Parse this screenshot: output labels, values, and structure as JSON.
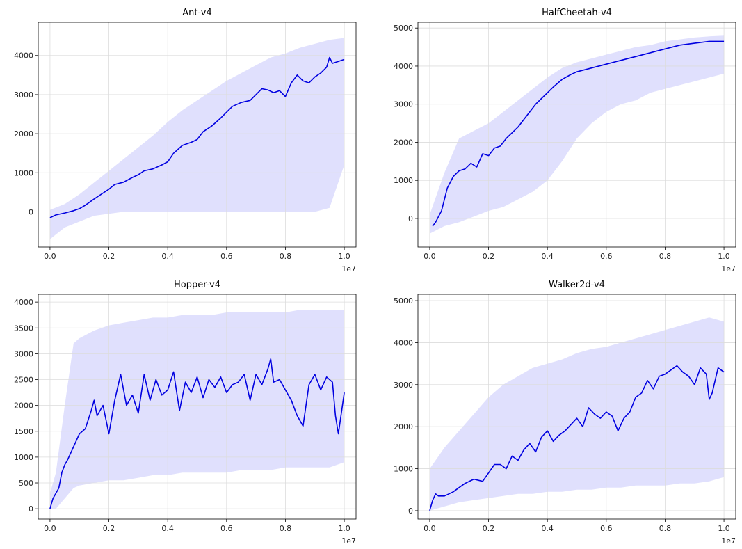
{
  "figure": {
    "background": "#ffffff"
  },
  "style": {
    "mean_color": "#0000e0",
    "band_color": "#e0e0fd",
    "grid_color": "#dcdcdc",
    "axis_color": "#000000"
  },
  "chart_data": [
    {
      "type": "line",
      "title": "Ant-v4",
      "xlabel": "",
      "ylabel": "",
      "x_offset_label": "1e7",
      "xlim": [
        -0.04,
        1.04
      ],
      "ylim": [
        -900,
        4850
      ],
      "xticks": [
        0.0,
        0.2,
        0.4,
        0.6,
        0.8,
        1.0
      ],
      "xtick_labels": [
        "0.0",
        "0.2",
        "0.4",
        "0.6",
        "0.8",
        "1.0"
      ],
      "yticks": [
        0,
        1000,
        2000,
        3000,
        4000
      ],
      "ytick_labels": [
        "0",
        "1000",
        "2000",
        "3000",
        "4000"
      ],
      "grid": true,
      "series": [
        {
          "mean": {
            "x": [
              0.0,
              0.02,
              0.05,
              0.08,
              0.1,
              0.12,
              0.15,
              0.18,
              0.2,
              0.22,
              0.25,
              0.28,
              0.3,
              0.32,
              0.35,
              0.38,
              0.4,
              0.42,
              0.45,
              0.48,
              0.5,
              0.52,
              0.55,
              0.58,
              0.6,
              0.62,
              0.65,
              0.68,
              0.7,
              0.72,
              0.74,
              0.76,
              0.78,
              0.8,
              0.82,
              0.84,
              0.86,
              0.88,
              0.9,
              0.92,
              0.94,
              0.95,
              0.96,
              0.98,
              1.0
            ],
            "y": [
              -150,
              -80,
              -30,
              30,
              80,
              170,
              330,
              480,
              580,
              700,
              760,
              880,
              950,
              1050,
              1100,
              1200,
              1280,
              1500,
              1700,
              1780,
              1850,
              2050,
              2200,
              2400,
              2550,
              2700,
              2800,
              2850,
              3000,
              3150,
              3120,
              3050,
              3100,
              2950,
              3300,
              3500,
              3350,
              3300,
              3450,
              3550,
              3700,
              3950,
              3800,
              3850,
              3900
            ]
          },
          "band": {
            "x": [
              0.0,
              0.05,
              0.1,
              0.15,
              0.2,
              0.25,
              0.3,
              0.35,
              0.4,
              0.45,
              0.5,
              0.55,
              0.6,
              0.65,
              0.7,
              0.75,
              0.8,
              0.85,
              0.9,
              0.95,
              1.0
            ],
            "upper": [
              50,
              200,
              450,
              750,
              1050,
              1350,
              1650,
              1950,
              2300,
              2600,
              2850,
              3100,
              3350,
              3550,
              3750,
              3950,
              4050,
              4200,
              4300,
              4400,
              4450
            ],
            "lower": [
              -700,
              -400,
              -250,
              -100,
              -50,
              0,
              0,
              0,
              0,
              0,
              0,
              0,
              0,
              0,
              0,
              0,
              0,
              0,
              0,
              100,
              1200
            ]
          }
        }
      ]
    },
    {
      "type": "line",
      "title": "HalfCheetah-v4",
      "xlabel": "",
      "ylabel": "",
      "x_offset_label": "1e7",
      "xlim": [
        -0.04,
        1.04
      ],
      "ylim": [
        -750,
        5150
      ],
      "xticks": [
        0.0,
        0.2,
        0.4,
        0.6,
        0.8,
        1.0
      ],
      "xtick_labels": [
        "0.0",
        "0.2",
        "0.4",
        "0.6",
        "0.8",
        "1.0"
      ],
      "yticks": [
        0,
        1000,
        2000,
        3000,
        4000,
        5000
      ],
      "ytick_labels": [
        "0",
        "1000",
        "2000",
        "3000",
        "4000",
        "5000"
      ],
      "grid": true,
      "series": [
        {
          "mean": {
            "x": [
              0.01,
              0.02,
              0.04,
              0.06,
              0.08,
              0.1,
              0.12,
              0.14,
              0.16,
              0.18,
              0.2,
              0.22,
              0.24,
              0.26,
              0.28,
              0.3,
              0.32,
              0.34,
              0.36,
              0.38,
              0.4,
              0.42,
              0.45,
              0.48,
              0.5,
              0.55,
              0.6,
              0.65,
              0.7,
              0.75,
              0.8,
              0.85,
              0.9,
              0.95,
              1.0
            ],
            "y": [
              -200,
              -100,
              200,
              800,
              1100,
              1250,
              1300,
              1450,
              1350,
              1700,
              1650,
              1850,
              1900,
              2100,
              2250,
              2400,
              2600,
              2800,
              3000,
              3150,
              3300,
              3450,
              3650,
              3780,
              3850,
              3950,
              4050,
              4150,
              4250,
              4350,
              4450,
              4550,
              4600,
              4650,
              4650
            ]
          },
          "band": {
            "x": [
              0.0,
              0.05,
              0.1,
              0.15,
              0.2,
              0.25,
              0.3,
              0.35,
              0.4,
              0.45,
              0.5,
              0.55,
              0.6,
              0.65,
              0.7,
              0.75,
              0.8,
              0.85,
              0.9,
              0.95,
              1.0
            ],
            "upper": [
              100,
              1200,
              2100,
              2300,
              2500,
              2800,
              3100,
              3400,
              3700,
              3950,
              4100,
              4200,
              4300,
              4400,
              4500,
              4550,
              4650,
              4700,
              4750,
              4780,
              4800
            ],
            "lower": [
              -400,
              -200,
              -100,
              50,
              200,
              300,
              500,
              700,
              1000,
              1500,
              2100,
              2500,
              2800,
              3000,
              3100,
              3300,
              3400,
              3500,
              3600,
              3700,
              3800
            ]
          }
        }
      ]
    },
    {
      "type": "line",
      "title": "Hopper-v4",
      "xlabel": "",
      "ylabel": "",
      "x_offset_label": "1e7",
      "xlim": [
        -0.04,
        1.04
      ],
      "ylim": [
        -200,
        4150
      ],
      "xticks": [
        0.0,
        0.2,
        0.4,
        0.6,
        0.8,
        1.0
      ],
      "xtick_labels": [
        "0.0",
        "0.2",
        "0.4",
        "0.6",
        "0.8",
        "1.0"
      ],
      "yticks": [
        0,
        500,
        1000,
        1500,
        2000,
        2500,
        3000,
        3500,
        4000
      ],
      "ytick_labels": [
        "0",
        "500",
        "1000",
        "1500",
        "2000",
        "2500",
        "3000",
        "3500",
        "4000"
      ],
      "grid": true,
      "series": [
        {
          "mean": {
            "x": [
              0.0,
              0.01,
              0.02,
              0.03,
              0.04,
              0.05,
              0.06,
              0.08,
              0.1,
              0.12,
              0.14,
              0.15,
              0.16,
              0.18,
              0.2,
              0.22,
              0.24,
              0.26,
              0.28,
              0.3,
              0.32,
              0.34,
              0.36,
              0.38,
              0.4,
              0.42,
              0.44,
              0.46,
              0.48,
              0.5,
              0.52,
              0.54,
              0.56,
              0.58,
              0.6,
              0.62,
              0.64,
              0.66,
              0.68,
              0.7,
              0.72,
              0.74,
              0.75,
              0.76,
              0.78,
              0.8,
              0.82,
              0.84,
              0.86,
              0.88,
              0.9,
              0.92,
              0.94,
              0.96,
              0.97,
              0.98,
              1.0
            ],
            "y": [
              0,
              200,
              300,
              400,
              700,
              850,
              950,
              1200,
              1450,
              1550,
              1900,
              2100,
              1800,
              2000,
              1450,
              2100,
              2600,
              2000,
              2200,
              1850,
              2600,
              2100,
              2500,
              2200,
              2300,
              2650,
              1900,
              2450,
              2250,
              2550,
              2150,
              2500,
              2350,
              2550,
              2250,
              2400,
              2450,
              2600,
              2100,
              2600,
              2400,
              2700,
              2900,
              2450,
              2500,
              2300,
              2100,
              1800,
              1600,
              2400,
              2600,
              2300,
              2550,
              2450,
              1800,
              1450,
              2250
            ]
          },
          "band": {
            "x": [
              0.0,
              0.02,
              0.05,
              0.08,
              0.1,
              0.15,
              0.2,
              0.25,
              0.3,
              0.35,
              0.4,
              0.45,
              0.5,
              0.55,
              0.6,
              0.65,
              0.7,
              0.75,
              0.8,
              0.85,
              0.9,
              0.95,
              1.0
            ],
            "upper": [
              300,
              700,
              2000,
              3200,
              3300,
              3450,
              3550,
              3600,
              3650,
              3700,
              3700,
              3750,
              3750,
              3750,
              3800,
              3800,
              3800,
              3800,
              3800,
              3850,
              3850,
              3850,
              3850
            ],
            "lower": [
              0,
              0,
              200,
              400,
              450,
              500,
              550,
              550,
              600,
              650,
              650,
              700,
              700,
              700,
              700,
              750,
              750,
              750,
              800,
              800,
              800,
              800,
              900
            ]
          }
        }
      ]
    },
    {
      "type": "line",
      "title": "Walker2d-v4",
      "xlabel": "",
      "ylabel": "",
      "x_offset_label": "1e7",
      "xlim": [
        -0.04,
        1.04
      ],
      "ylim": [
        -200,
        5150
      ],
      "xticks": [
        0.0,
        0.2,
        0.4,
        0.6,
        0.8,
        1.0
      ],
      "xtick_labels": [
        "0.0",
        "0.2",
        "0.4",
        "0.6",
        "0.8",
        "1.0"
      ],
      "yticks": [
        0,
        1000,
        2000,
        3000,
        4000,
        5000
      ],
      "ytick_labels": [
        "0",
        "1000",
        "2000",
        "3000",
        "4000",
        "5000"
      ],
      "grid": true,
      "series": [
        {
          "mean": {
            "x": [
              0.0,
              0.01,
              0.02,
              0.03,
              0.05,
              0.08,
              0.1,
              0.12,
              0.15,
              0.18,
              0.2,
              0.22,
              0.24,
              0.26,
              0.28,
              0.3,
              0.32,
              0.34,
              0.36,
              0.38,
              0.4,
              0.42,
              0.44,
              0.46,
              0.48,
              0.5,
              0.52,
              0.54,
              0.56,
              0.58,
              0.6,
              0.62,
              0.64,
              0.66,
              0.68,
              0.7,
              0.72,
              0.74,
              0.76,
              0.78,
              0.8,
              0.82,
              0.84,
              0.86,
              0.88,
              0.9,
              0.92,
              0.94,
              0.95,
              0.96,
              0.98,
              1.0
            ],
            "y": [
              0,
              250,
              400,
              350,
              350,
              450,
              550,
              650,
              750,
              700,
              900,
              1100,
              1100,
              1000,
              1300,
              1200,
              1450,
              1600,
              1400,
              1750,
              1900,
              1650,
              1800,
              1900,
              2050,
              2200,
              2000,
              2450,
              2300,
              2200,
              2350,
              2250,
              1900,
              2200,
              2350,
              2700,
              2800,
              3100,
              2900,
              3200,
              3250,
              3350,
              3450,
              3300,
              3200,
              3000,
              3400,
              3250,
              2650,
              2800,
              3400,
              3300
            ]
          },
          "band": {
            "x": [
              0.0,
              0.05,
              0.1,
              0.15,
              0.2,
              0.25,
              0.3,
              0.35,
              0.4,
              0.45,
              0.5,
              0.55,
              0.6,
              0.65,
              0.7,
              0.75,
              0.8,
              0.85,
              0.9,
              0.95,
              1.0
            ],
            "upper": [
              1000,
              1500,
              1900,
              2300,
              2700,
              3000,
              3200,
              3400,
              3500,
              3600,
              3750,
              3850,
              3900,
              4000,
              4100,
              4200,
              4300,
              4400,
              4500,
              4600,
              4500
            ],
            "lower": [
              0,
              100,
              200,
              250,
              300,
              350,
              400,
              400,
              450,
              450,
              500,
              500,
              550,
              550,
              600,
              600,
              600,
              650,
              650,
              700,
              800
            ]
          }
        }
      ]
    }
  ]
}
